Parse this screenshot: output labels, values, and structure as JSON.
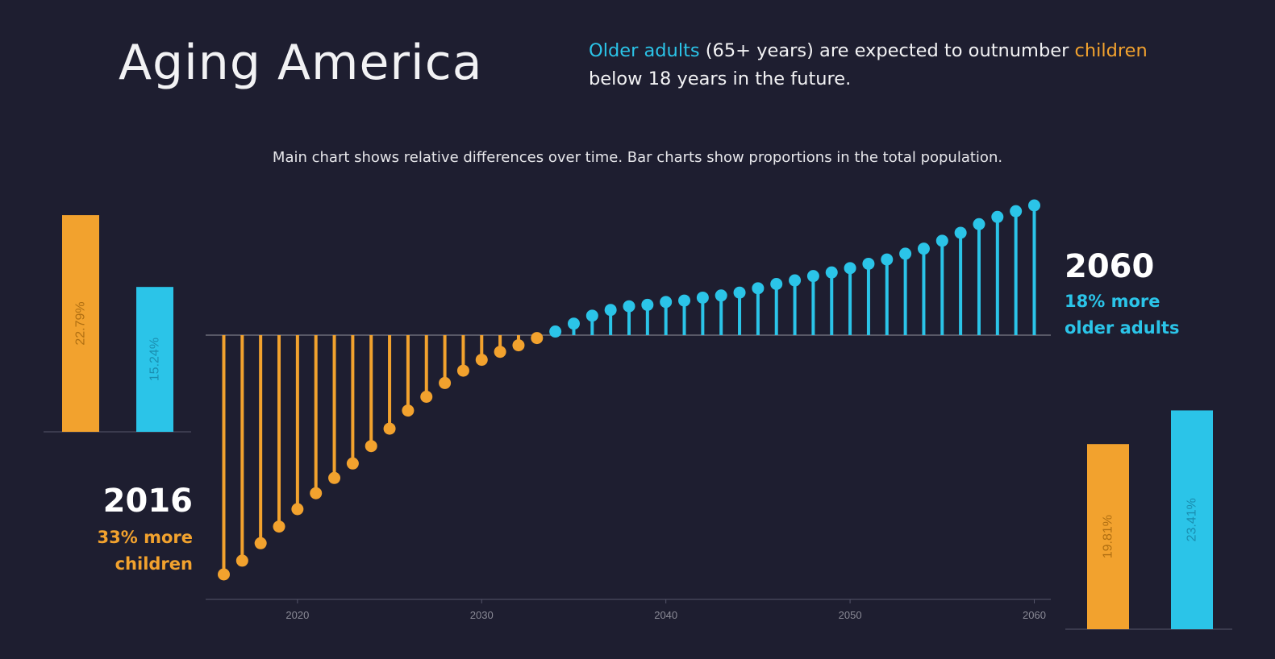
{
  "header": {
    "title": "Aging America",
    "headline": {
      "older_adults": "Older adults",
      "part1": " (65+ years) are expected to outnumber ",
      "children": "children",
      "part2": " below 18 years in the future."
    },
    "subtitle": "Main chart shows relative differences over time. Bar charts show proportions in the total population."
  },
  "start_callout": {
    "year": "2016",
    "line1": "33% more",
    "line2": "children"
  },
  "end_callout": {
    "year": "2060",
    "line1": "18% more",
    "line2": "older adults"
  },
  "colors": {
    "children": "#f2a22e",
    "older_adults": "#2bc4e8",
    "background": "#1e1e30",
    "axis": "#6b6b78"
  },
  "chart_data": [
    {
      "type": "lollipop",
      "x_ticks": [
        2020,
        2030,
        2040,
        2050,
        2060
      ],
      "ylim": [
        -33,
        18
      ],
      "baseline": 0,
      "series": [
        {
          "x": [
            2016,
            2017,
            2018,
            2019,
            2020,
            2021,
            2022,
            2023,
            2024,
            2025,
            2026,
            2027,
            2028,
            2029,
            2030,
            2031,
            2032,
            2033,
            2034,
            2035,
            2036,
            2037,
            2038,
            2039,
            2040,
            2041,
            2042,
            2043,
            2044,
            2045,
            2046,
            2047,
            2048,
            2049,
            2050,
            2051,
            2052,
            2053,
            2054,
            2055,
            2056,
            2057,
            2058,
            2059,
            2060
          ],
          "values": [
            -33.0,
            -31.1,
            -28.7,
            -26.4,
            -24.0,
            -21.8,
            -19.7,
            -17.7,
            -15.3,
            -12.9,
            -10.4,
            -8.5,
            -6.6,
            -4.9,
            -3.4,
            -2.3,
            -1.4,
            -0.4,
            0.5,
            1.6,
            2.7,
            3.5,
            4.0,
            4.2,
            4.6,
            4.8,
            5.2,
            5.5,
            5.9,
            6.5,
            7.1,
            7.6,
            8.2,
            8.7,
            9.3,
            9.9,
            10.5,
            11.3,
            12.0,
            13.1,
            14.2,
            15.4,
            16.4,
            17.2,
            18.0
          ]
        }
      ]
    },
    {
      "type": "bar",
      "year": "2016",
      "categories": [
        "children",
        "older_adults"
      ],
      "values": [
        22.79,
        15.24
      ],
      "labels": [
        "22.79%",
        "15.24%"
      ]
    },
    {
      "type": "bar",
      "year": "2060",
      "categories": [
        "children",
        "older_adults"
      ],
      "values": [
        19.81,
        23.41
      ],
      "labels": [
        "19.81%",
        "23.41%"
      ]
    }
  ]
}
